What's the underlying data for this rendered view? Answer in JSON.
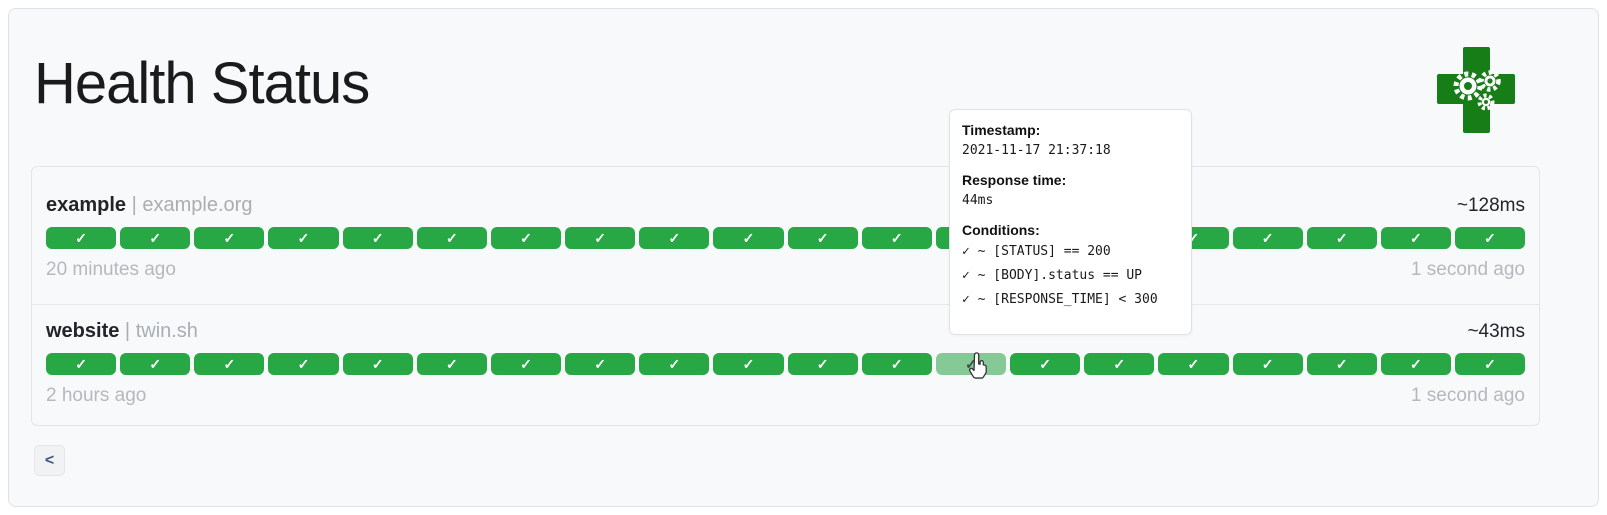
{
  "page": {
    "title": "Health Status"
  },
  "icons": {
    "check": "✓",
    "pager_prev": "<"
  },
  "colors": {
    "success_green": "#28a745",
    "hover_green": "#85ca96",
    "logo_green": "#177d17"
  },
  "services": [
    {
      "name": "example",
      "separator": "|",
      "host": "example.org",
      "avg_response": "~128ms",
      "oldest_label": "20 minutes ago",
      "newest_label": "1 second ago",
      "hovered_index": -1,
      "results": [
        "up",
        "up",
        "up",
        "up",
        "up",
        "up",
        "up",
        "up",
        "up",
        "up",
        "up",
        "up",
        "up",
        "up",
        "up",
        "up",
        "up",
        "up",
        "up",
        "up"
      ]
    },
    {
      "name": "website",
      "separator": "|",
      "host": "twin.sh",
      "avg_response": "~43ms",
      "oldest_label": "2 hours ago",
      "newest_label": "1 second ago",
      "hovered_index": 12,
      "results": [
        "up",
        "up",
        "up",
        "up",
        "up",
        "up",
        "up",
        "up",
        "up",
        "up",
        "up",
        "up",
        "up",
        "up",
        "up",
        "up",
        "up",
        "up",
        "up",
        "up"
      ]
    }
  ],
  "tooltip": {
    "timestamp_label": "Timestamp:",
    "timestamp": "2021-11-17 21:37:18",
    "response_time_label": "Response time:",
    "response_time": "44ms",
    "conditions_label": "Conditions:",
    "conditions": [
      "✓ ~ [STATUS] == 200",
      "✓ ~ [BODY].status == UP",
      "✓ ~ [RESPONSE_TIME] < 300"
    ]
  },
  "pagination": {
    "previous_label": "<"
  }
}
